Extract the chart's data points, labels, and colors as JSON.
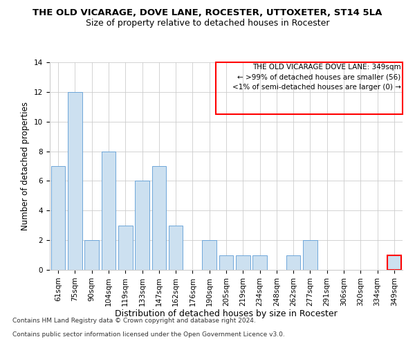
{
  "title": "THE OLD VICARAGE, DOVE LANE, ROCESTER, UTTOXETER, ST14 5LA",
  "subtitle": "Size of property relative to detached houses in Rocester",
  "xlabel": "Distribution of detached houses by size in Rocester",
  "ylabel": "Number of detached properties",
  "categories": [
    "61sqm",
    "75sqm",
    "90sqm",
    "104sqm",
    "119sqm",
    "133sqm",
    "147sqm",
    "162sqm",
    "176sqm",
    "190sqm",
    "205sqm",
    "219sqm",
    "234sqm",
    "248sqm",
    "262sqm",
    "277sqm",
    "291sqm",
    "306sqm",
    "320sqm",
    "334sqm",
    "349sqm"
  ],
  "values": [
    7,
    12,
    2,
    8,
    3,
    6,
    7,
    3,
    0,
    2,
    1,
    1,
    1,
    0,
    1,
    2,
    0,
    0,
    0,
    0,
    1
  ],
  "bar_color": "#cce0f0",
  "bar_edge_color": "#5b9bd5",
  "highlight_bar_index": 20,
  "highlight_edge_color": "#ff0000",
  "ylim": [
    0,
    14
  ],
  "yticks": [
    0,
    2,
    4,
    6,
    8,
    10,
    12,
    14
  ],
  "grid_color": "#cccccc",
  "background_color": "#ffffff",
  "legend_title": "THE OLD VICARAGE DOVE LANE: 349sqm",
  "legend_line1": "← >99% of detached houses are smaller (56)",
  "legend_line2": "<1% of semi-detached houses are larger (0) →",
  "legend_box_color": "#ffffff",
  "legend_box_edge_color": "#ff0000",
  "title_fontsize": 9.5,
  "subtitle_fontsize": 9,
  "xlabel_fontsize": 9,
  "ylabel_fontsize": 8.5,
  "tick_fontsize": 7.5,
  "legend_fontsize": 7.5,
  "footer_fontsize": 6.5,
  "footer_line1": "Contains HM Land Registry data © Crown copyright and database right 2024.",
  "footer_line2": "Contains public sector information licensed under the Open Government Licence v3.0."
}
